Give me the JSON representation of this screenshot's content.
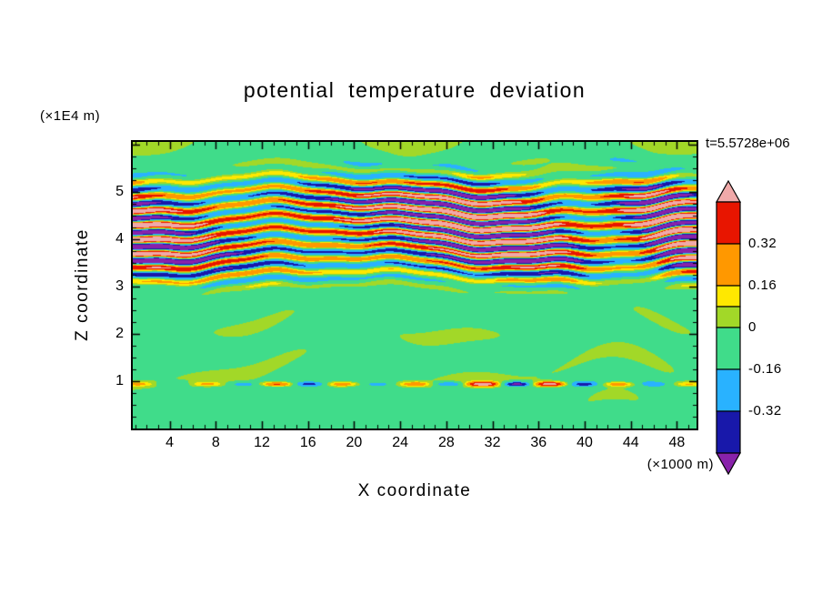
{
  "chart_data": {
    "type": "heatmap",
    "title": "potential temperature deviation",
    "xlabel": "X coordinate",
    "ylabel": "Z coordinate",
    "x_unit_label": "(×1000 m)",
    "y_unit_label": "(×1E4 m)",
    "time_label": "t=5.5728e+06",
    "x_ticks": [
      4,
      8,
      12,
      16,
      20,
      24,
      28,
      32,
      36,
      40,
      44,
      48
    ],
    "y_ticks": [
      1,
      2,
      3,
      4,
      5
    ],
    "x_range": [
      0.8,
      49.7
    ],
    "y_range": [
      0,
      6.05
    ],
    "grid": false,
    "legend_position": "right",
    "background_value_color": "#40DC8A",
    "structure": "quasi-horizontal wavy colored bands (gravity-wave pattern) concentrated between z=3 and z=5.3 reaching saturation colors (pink/purple); mostly uniform green elsewhere with faint yellow-green streak patches below z=2.8, wisps near the top edge, and a thin multicolored streak near z=0.9",
    "colorbar": {
      "labels": [
        {
          "text": "0.32",
          "level": 0.32
        },
        {
          "text": "0.16",
          "level": 0.16
        },
        {
          "text": "0",
          "level": 0
        },
        {
          "text": "-0.16",
          "level": -0.16
        },
        {
          "text": "-0.32",
          "level": -0.32
        }
      ],
      "levels": [
        0.48,
        0.32,
        0.16,
        0.08,
        0,
        -0.16,
        -0.32,
        -0.48
      ],
      "band_colors": [
        "#E81500",
        "#FF9800",
        "#FFE800",
        "#A2D828",
        "#40DC8A",
        "#29B2FF",
        "#1818AA"
      ],
      "over_color": "#F0A9A9",
      "under_color": "#8822AA"
    }
  }
}
